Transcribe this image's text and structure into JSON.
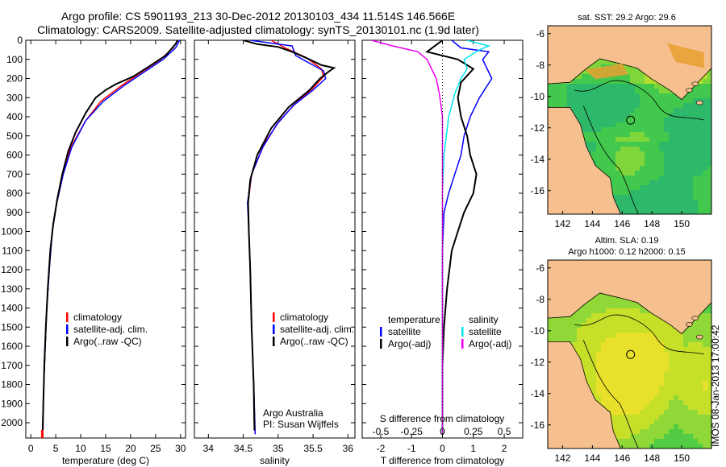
{
  "header": {
    "title_line1": "Argo profile: CS 5901193_213 30-Dec-2012 20130103_434 11.514S 146.566E",
    "title_line2": "Climatology: CARS2009. Satellite-adjusted climatology: synTS_20130101.nc (1.9d later)"
  },
  "stamp": "IMOS 08-Jan-2013 17:00:42",
  "colors": {
    "clim": "#ff0000",
    "sat": "#0000ff",
    "argo": "#000000",
    "sal_sat": "#00e5ee",
    "sal_argo": "#ee00ee",
    "land": "#f5c08e",
    "sea_green": "#44cc44",
    "sea_yellow": "#ddee22"
  },
  "chart_data": [
    {
      "type": "line",
      "name": "temperature-profile",
      "xlabel": "temperature (deg C)",
      "xlim": [
        -1,
        31
      ],
      "ylim": [
        0,
        2080
      ],
      "xticks": [
        0,
        5,
        10,
        15,
        20,
        25,
        30
      ],
      "yticks": [
        0,
        100,
        200,
        300,
        400,
        500,
        600,
        700,
        800,
        900,
        1000,
        1100,
        1200,
        1300,
        1400,
        1500,
        1600,
        1700,
        1800,
        1900,
        2000
      ],
      "legend": [
        "climatology",
        "satellite-adj. clim.",
        "Argo(..raw -QC)"
      ],
      "series": [
        {
          "name": "climatology",
          "color": "red",
          "points": [
            [
              29.5,
              0
            ],
            [
              28.5,
              40
            ],
            [
              26,
              100
            ],
            [
              22,
              170
            ],
            [
              18,
              240
            ],
            [
              14,
              320
            ],
            [
              11,
              420
            ],
            [
              8,
              560
            ],
            [
              6.5,
              700
            ],
            [
              5.2,
              850
            ],
            [
              4.3,
              1000
            ],
            [
              3.7,
              1200
            ],
            [
              3.2,
              1400
            ],
            [
              2.9,
              1600
            ],
            [
              2.6,
              1800
            ],
            [
              2.4,
              2000
            ],
            [
              2.3,
              2060
            ]
          ]
        },
        {
          "name": "satellite-adj. clim.",
          "color": "blue",
          "points": [
            [
              29.8,
              0
            ],
            [
              29,
              40
            ],
            [
              26.5,
              100
            ],
            [
              22.5,
              170
            ],
            [
              18.5,
              240
            ],
            [
              14.5,
              320
            ],
            [
              11,
              420
            ],
            [
              8.2,
              560
            ],
            [
              6.5,
              700
            ],
            [
              5.2,
              850
            ],
            [
              4.3,
              1000
            ],
            [
              3.7,
              1200
            ],
            [
              3.2,
              1400
            ],
            [
              2.9,
              1600
            ],
            [
              2.6,
              1800
            ],
            [
              2.4,
              2000
            ],
            [
              2.3,
              2060
            ]
          ]
        },
        {
          "name": "Argo(..raw -QC)",
          "color": "black",
          "points": [
            [
              29.4,
              0
            ],
            [
              29,
              20
            ],
            [
              27,
              80
            ],
            [
              23.5,
              140
            ],
            [
              20.5,
              190
            ],
            [
              17,
              230
            ],
            [
              15,
              260
            ],
            [
              13,
              300
            ],
            [
              11,
              380
            ],
            [
              9,
              480
            ],
            [
              7.5,
              580
            ],
            [
              6.3,
              700
            ],
            [
              5.3,
              830
            ],
            [
              4.5,
              960
            ],
            [
              3.9,
              1100
            ],
            [
              3.4,
              1300
            ],
            [
              3,
              1500
            ],
            [
              2.7,
              1700
            ],
            [
              2.5,
              1900
            ],
            [
              2.4,
              2040
            ]
          ]
        }
      ]
    },
    {
      "type": "line",
      "name": "salinity-profile",
      "xlabel": "salinity",
      "xlim": [
        33.8,
        36.1
      ],
      "ylim": [
        0,
        2080
      ],
      "xticks": [
        34,
        34.5,
        35,
        35.5,
        36
      ],
      "legend": [
        "climatology",
        "satellite-adj. clim.",
        "Argo(..raw -QC)"
      ],
      "annotation": [
        "Argo Australia",
        "PI: Susan Wijffels"
      ],
      "series": [
        {
          "name": "climatology",
          "color": "red",
          "points": [
            [
              34.9,
              0
            ],
            [
              35.1,
              40
            ],
            [
              35.4,
              90
            ],
            [
              35.62,
              150
            ],
            [
              35.65,
              190
            ],
            [
              35.5,
              250
            ],
            [
              35.25,
              330
            ],
            [
              35.02,
              420
            ],
            [
              34.8,
              540
            ],
            [
              34.62,
              700
            ],
            [
              34.57,
              850
            ],
            [
              34.58,
              1000
            ],
            [
              34.6,
              1200
            ],
            [
              34.62,
              1500
            ],
            [
              34.65,
              1800
            ],
            [
              34.67,
              2060
            ]
          ]
        },
        {
          "name": "satellite-adj. clim.",
          "color": "blue",
          "points": [
            [
              34.6,
              0
            ],
            [
              35.0,
              20
            ],
            [
              35.2,
              30
            ],
            [
              35.25,
              80
            ],
            [
              35.5,
              130
            ],
            [
              35.65,
              160
            ],
            [
              35.68,
              200
            ],
            [
              35.5,
              260
            ],
            [
              35.22,
              340
            ],
            [
              34.98,
              440
            ],
            [
              34.78,
              560
            ],
            [
              34.62,
              700
            ],
            [
              34.56,
              850
            ],
            [
              34.58,
              1000
            ],
            [
              34.6,
              1200
            ],
            [
              34.62,
              1500
            ],
            [
              34.65,
              1800
            ],
            [
              34.67,
              2060
            ]
          ]
        },
        {
          "name": "Argo(..raw -QC)",
          "color": "black",
          "points": [
            [
              34.5,
              0
            ],
            [
              34.7,
              20
            ],
            [
              35.0,
              35
            ],
            [
              35.2,
              60
            ],
            [
              35.45,
              100
            ],
            [
              35.62,
              130
            ],
            [
              35.8,
              145
            ],
            [
              35.72,
              165
            ],
            [
              35.6,
              200
            ],
            [
              35.45,
              260
            ],
            [
              35.15,
              350
            ],
            [
              34.9,
              460
            ],
            [
              34.7,
              600
            ],
            [
              34.6,
              730
            ],
            [
              34.57,
              850
            ],
            [
              34.58,
              1000
            ],
            [
              34.6,
              1200
            ],
            [
              34.62,
              1500
            ],
            [
              34.65,
              1800
            ],
            [
              34.66,
              2040
            ]
          ]
        }
      ]
    },
    {
      "type": "line",
      "name": "difference-profile",
      "xlabel": "T difference from climatology",
      "xlabel_top": "S difference from climatology",
      "xlim": [
        -2.6,
        2.6
      ],
      "ylim": [
        0,
        2080
      ],
      "xticks": [
        -2,
        -1,
        0,
        1,
        2
      ],
      "xticks_sal": [
        "-0.5",
        "-0.25",
        "0",
        "0.25",
        "0.5"
      ],
      "legend_temperature": [
        "temperature",
        "satellite",
        "Argo(-adj)"
      ],
      "legend_salinity": [
        "salinity",
        "satellite",
        "Argo(-adj)"
      ],
      "series": [
        {
          "name": "temperature satellite",
          "color": "blue",
          "points": [
            [
              0.3,
              0
            ],
            [
              0.6,
              40
            ],
            [
              1.5,
              60
            ],
            [
              1.3,
              100
            ],
            [
              1.6,
              200
            ],
            [
              1.2,
              300
            ],
            [
              0.9,
              400
            ],
            [
              0.7,
              500
            ],
            [
              0.6,
              600
            ],
            [
              0.4,
              700
            ],
            [
              0.2,
              800
            ],
            [
              0.05,
              900
            ],
            [
              0,
              1100
            ],
            [
              0,
              2060
            ]
          ]
        },
        {
          "name": "temperature Argo(-adj)",
          "color": "black",
          "points": [
            [
              0,
              0
            ],
            [
              -0.5,
              60
            ],
            [
              0.5,
              100
            ],
            [
              1.0,
              150
            ],
            [
              0.6,
              220
            ],
            [
              0.5,
              300
            ],
            [
              0.6,
              400
            ],
            [
              0.8,
              500
            ],
            [
              0.9,
              600
            ],
            [
              1.1,
              700
            ],
            [
              1.0,
              800
            ],
            [
              0.7,
              900
            ],
            [
              0.5,
              1000
            ],
            [
              0.3,
              1100
            ],
            [
              0.15,
              1300
            ],
            [
              0.05,
              1500
            ],
            [
              0,
              1700
            ],
            [
              0,
              2060
            ]
          ]
        },
        {
          "name": "salinity satellite",
          "color": "cyan",
          "points": [
            [
              0.8,
              0
            ],
            [
              1.5,
              30
            ],
            [
              1.2,
              50
            ],
            [
              0.9,
              80
            ],
            [
              0.7,
              100
            ],
            [
              0.8,
              150
            ],
            [
              0.6,
              200
            ],
            [
              0.4,
              280
            ],
            [
              0.2,
              400
            ],
            [
              0.05,
              600
            ],
            [
              0,
              800
            ],
            [
              0,
              2060
            ]
          ]
        },
        {
          "name": "salinity Argo(-adj)",
          "color": "magenta",
          "points": [
            [
              -2.3,
              0
            ],
            [
              -1.6,
              30
            ],
            [
              -0.8,
              60
            ],
            [
              -0.5,
              100
            ],
            [
              -0.2,
              200
            ],
            [
              -0.1,
              280
            ],
            [
              0,
              400
            ],
            [
              0,
              800
            ],
            [
              0,
              1400
            ],
            [
              0,
              2060
            ]
          ]
        }
      ]
    },
    {
      "type": "heatmap",
      "name": "sst-map",
      "title": "sat. SST: 29.2  Argo: 29.6",
      "xticks": [
        142,
        144,
        146,
        148,
        150
      ],
      "yticks": [
        -6,
        -8,
        -10,
        -12,
        -14,
        -16
      ],
      "xlim": [
        141,
        152
      ],
      "ylim": [
        -17.5,
        -5.5
      ],
      "argo_location": [
        146.566,
        -11.514
      ]
    },
    {
      "type": "heatmap",
      "name": "sla-map",
      "title": "Altim. SLA: 0.19",
      "subtitle": "Argo h1000: 0.12 h2000: 0.15",
      "xticks": [
        142,
        144,
        146,
        148,
        150
      ],
      "yticks": [
        -6,
        -8,
        -10,
        -12,
        -14,
        -16
      ],
      "xlim": [
        141,
        152
      ],
      "ylim": [
        -17.5,
        -5.5
      ],
      "argo_location": [
        146.566,
        -11.514
      ]
    }
  ]
}
